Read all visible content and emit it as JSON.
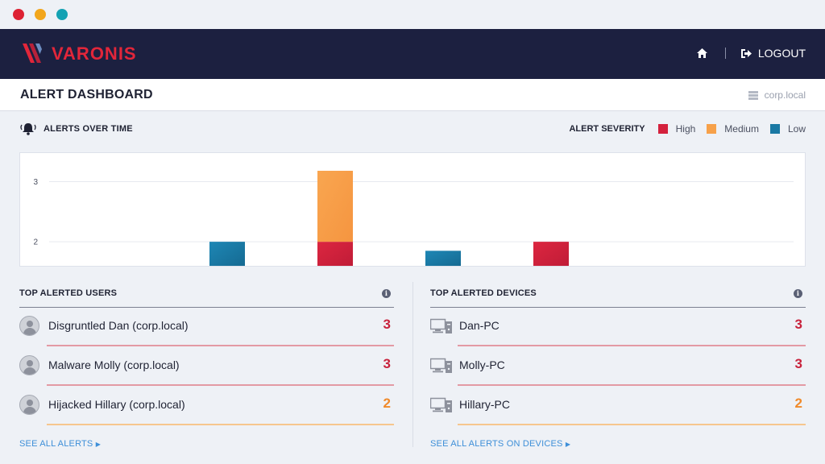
{
  "window": {
    "dots": [
      {
        "name": "close",
        "color": "#dd2233"
      },
      {
        "name": "minimize",
        "color": "#f2a61c"
      },
      {
        "name": "maximize",
        "color": "#14a2b3"
      }
    ]
  },
  "header": {
    "logo_text": "VARONIS",
    "logo_icon": "varonis-logo-icon",
    "home_icon": "home-icon",
    "logout_icon": "logout-icon",
    "logout_label": "LOGOUT"
  },
  "subheader": {
    "title": "ALERT DASHBOARD",
    "domain_icon": "server-icon",
    "domain": "corp.local"
  },
  "alerts_over_time": {
    "title": "ALERTS OVER TIME",
    "icon": "bell-icon"
  },
  "legend": {
    "title": "ALERT SEVERITY",
    "items": [
      {
        "label": "High",
        "color": "#d4213d"
      },
      {
        "label": "Medium",
        "color": "#f7a14a"
      },
      {
        "label": "Low",
        "color": "#1a79a4"
      }
    ]
  },
  "chart_data": {
    "type": "bar",
    "stacked": true,
    "y_ticks": [
      "2",
      "3"
    ],
    "ylim": [
      1.6,
      3.18
    ],
    "grid": true,
    "bars": [
      {
        "slot": 2,
        "segments": [
          {
            "severity": "Low",
            "from": 1.6,
            "to": 2.0
          }
        ]
      },
      {
        "slot": 3,
        "segments": [
          {
            "severity": "High",
            "from": 1.6,
            "to": 2.0
          },
          {
            "severity": "Medium",
            "from": 2.0,
            "to": 3.18
          }
        ]
      },
      {
        "slot": 4,
        "segments": [
          {
            "severity": "Low",
            "from": 1.6,
            "to": 1.85
          }
        ]
      },
      {
        "slot": 5,
        "segments": [
          {
            "severity": "High",
            "from": 1.6,
            "to": 2.0
          }
        ]
      }
    ]
  },
  "top_users": {
    "title": "TOP ALERTED USERS",
    "info_icon": "info-icon",
    "rows": [
      {
        "name": "Disgruntled Dan (corp.local)",
        "count": "3",
        "severity": "High",
        "color": "#c8223c",
        "line": "#e39aa4"
      },
      {
        "name": "Malware Molly (corp.local)",
        "count": "3",
        "severity": "High",
        "color": "#c8223c",
        "line": "#e39aa4"
      },
      {
        "name": "Hijacked Hillary (corp.local)",
        "count": "2",
        "severity": "Medium",
        "color": "#f08a2a",
        "line": "#f6c68e"
      }
    ],
    "see_all": "SEE ALL ALERTS"
  },
  "top_devices": {
    "title": "TOP ALERTED DEVICES",
    "info_icon": "info-icon",
    "rows": [
      {
        "name": "Dan-PC",
        "count": "3",
        "severity": "High",
        "color": "#c8223c",
        "line": "#e39aa4"
      },
      {
        "name": "Molly-PC",
        "count": "3",
        "severity": "High",
        "color": "#c8223c",
        "line": "#e39aa4"
      },
      {
        "name": "Hillary-PC",
        "count": "2",
        "severity": "Medium",
        "color": "#f08a2a",
        "line": "#f6c68e"
      }
    ],
    "see_all": "SEE ALL ALERTS ON DEVICES"
  }
}
